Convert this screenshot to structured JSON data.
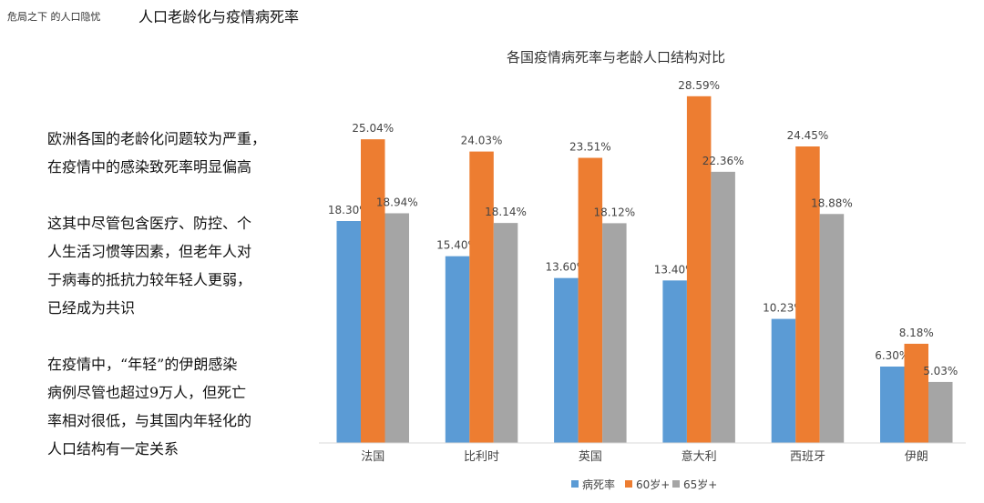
{
  "header": {
    "breadcrumb": "危局之下 的人口隐忧",
    "title": "人口老龄化与疫情病死率"
  },
  "body_text": {
    "paragraphs": [
      [
        "欧洲各国的老龄化问题较为严重，",
        "在疫情中的感染致死率明显偏高"
      ],
      [
        "这其中尽管包含医疗、防控、个",
        "人生活习惯等因素，但老年人对",
        "于病毒的抵抗力较年轻人更弱，",
        "已经成为共识"
      ],
      [
        "在疫情中，“年轻”的伊朗感染",
        "病例尽管也超过9万人，但死亡",
        "率相对很低，与其国内年轻化的",
        "人口结构有一定关系"
      ]
    ]
  },
  "chart_data": {
    "type": "bar",
    "title": "各国疫情病死率与老龄人口结构对比",
    "categories": [
      "法国",
      "比利时",
      "英国",
      "意大利",
      "西班牙",
      "伊朗"
    ],
    "series": [
      {
        "name": "病死率",
        "color": "#5b9bd5",
        "values": [
          18.3,
          15.4,
          13.6,
          13.4,
          10.23,
          6.3
        ],
        "labels": [
          "18.30%",
          "15.40%",
          "13.60%",
          "13.40%",
          "10.23%",
          "6.30%"
        ]
      },
      {
        "name": "60岁+",
        "color": "#ed7d31",
        "values": [
          25.04,
          24.03,
          23.51,
          28.59,
          24.45,
          8.18
        ],
        "labels": [
          "25.04%",
          "24.03%",
          "23.51%",
          "28.59%",
          "24.45%",
          "8.18%"
        ]
      },
      {
        "name": "65岁+",
        "color": "#a5a5a5",
        "values": [
          18.94,
          18.14,
          18.12,
          22.36,
          18.88,
          5.03
        ],
        "labels": [
          "18.94%",
          "18.14%",
          "18.12%",
          "22.36%",
          "18.88%",
          "5.03%"
        ]
      }
    ],
    "ylim": [
      0,
      30
    ],
    "grid": false,
    "legend_position": "bottom"
  }
}
